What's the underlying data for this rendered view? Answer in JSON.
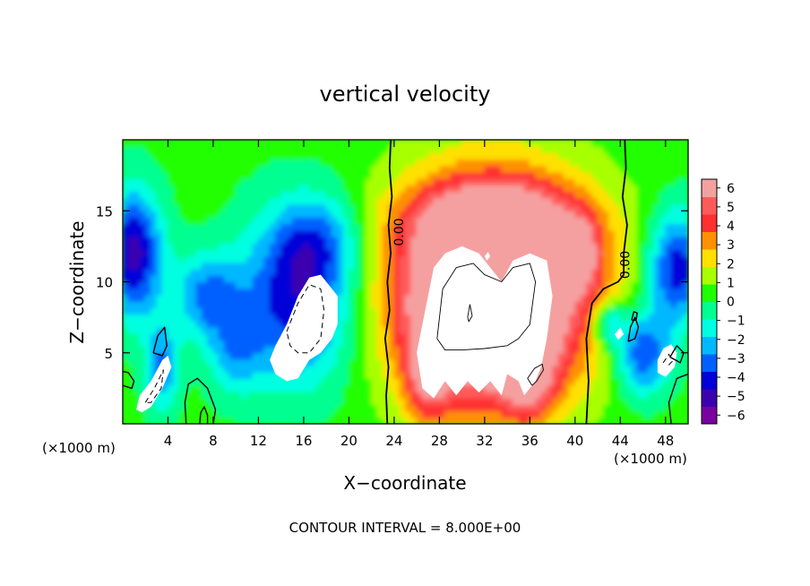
{
  "chart_data": {
    "type": "heatmap",
    "title": "vertical velocity",
    "xlabel": "X−coordinate",
    "ylabel": "Z−coordinate",
    "x_unit_left": "(×1000 m)",
    "x_unit_right": "(×1000 m)",
    "footer": "CONTOUR INTERVAL = 8.000E+00",
    "xlim": [
      0,
      50
    ],
    "ylim": [
      0,
      20
    ],
    "x_ticks": [
      4,
      8,
      12,
      16,
      20,
      24,
      28,
      32,
      36,
      40,
      44,
      48
    ],
    "y_ticks": [
      5,
      10,
      15
    ],
    "colorbar": {
      "ticks": [
        6,
        5,
        4,
        3,
        2,
        1,
        0,
        -1,
        -2,
        -3,
        -4,
        -5,
        -6
      ],
      "tick_labels": [
        "6",
        "5",
        "4",
        "3",
        "2",
        "1",
        "0",
        "−1",
        "−2",
        "−3",
        "−4",
        "−5",
        "−6"
      ],
      "range": [
        -6,
        6
      ],
      "colors": [
        "#7a00a0",
        "#3a00b0",
        "#0000d8",
        "#0060ff",
        "#00b8ff",
        "#00ffe0",
        "#00ff90",
        "#20ff00",
        "#a8ff00",
        "#ffe000",
        "#ff9000",
        "#ff3030",
        "#ff5a5a",
        "#f5a0a0"
      ]
    },
    "contour_labels": [
      {
        "text": "0.00",
        "x": 24.8,
        "y": 13.5
      },
      {
        "text": "0.00",
        "x": 44.8,
        "y": 11.2
      }
    ],
    "field": {
      "background": 0.3,
      "blobs": [
        {
          "x": 33,
          "y": 10,
          "rx": 9,
          "ry": 7.5,
          "w": 7
        },
        {
          "x": 32,
          "y": 8,
          "rx": 7,
          "ry": 7,
          "w": 4
        },
        {
          "x": 33,
          "y": 14.5,
          "rx": 8,
          "ry": 2.5,
          "w": 2.5
        },
        {
          "x": 40.5,
          "y": 12,
          "rx": 1.8,
          "ry": 2.5,
          "w": 3
        },
        {
          "x": 27,
          "y": 3.5,
          "rx": 2,
          "ry": 3.5,
          "w": 3
        },
        {
          "x": 36,
          "y": 3.2,
          "rx": 2.2,
          "ry": 3,
          "w": 3
        },
        {
          "x": 15.5,
          "y": 9,
          "rx": 5,
          "ry": 6,
          "w": -4.5
        },
        {
          "x": 17.5,
          "y": 13,
          "rx": 3.5,
          "ry": 3,
          "w": -2
        },
        {
          "x": 1,
          "y": 12,
          "rx": 2.5,
          "ry": 4.5,
          "w": -5
        },
        {
          "x": 7.5,
          "y": 9,
          "rx": 3,
          "ry": 3,
          "w": -3
        },
        {
          "x": 10,
          "y": 5,
          "rx": 2.5,
          "ry": 3,
          "w": -2
        },
        {
          "x": 3.5,
          "y": 4,
          "rx": 1.5,
          "ry": 3,
          "w": -3
        },
        {
          "x": 49,
          "y": 11,
          "rx": 2.5,
          "ry": 4,
          "w": -4.5
        },
        {
          "x": 46,
          "y": 5,
          "rx": 2.5,
          "ry": 3,
          "w": -4
        },
        {
          "x": 43,
          "y": 7,
          "rx": 1.5,
          "ry": 1.5,
          "w": -3
        }
      ]
    },
    "white_regions_above_6": [
      [
        [
          27,
          9
        ],
        [
          27.5,
          11
        ],
        [
          28.5,
          12
        ],
        [
          30,
          12.5
        ],
        [
          31.5,
          12
        ],
        [
          32.5,
          11
        ],
        [
          33.5,
          10
        ],
        [
          34.5,
          11.5
        ],
        [
          36,
          12
        ],
        [
          37.5,
          11.5
        ],
        [
          38,
          9
        ],
        [
          37.5,
          6
        ],
        [
          37,
          4
        ],
        [
          36.5,
          3
        ],
        [
          35.5,
          2
        ],
        [
          35,
          3
        ],
        [
          34,
          3.5
        ],
        [
          33.5,
          2
        ],
        [
          32.5,
          3
        ],
        [
          31.5,
          2.2
        ],
        [
          30.5,
          3
        ],
        [
          29.5,
          2
        ],
        [
          28.5,
          3
        ],
        [
          27.5,
          1.8
        ],
        [
          26.5,
          2.5
        ],
        [
          26,
          5
        ],
        [
          26.5,
          7
        ]
      ],
      [
        [
          13.5,
          5.5
        ],
        [
          14.5,
          7
        ],
        [
          15.5,
          9
        ],
        [
          16.5,
          10.3
        ],
        [
          17.5,
          10.5
        ],
        [
          18,
          10
        ],
        [
          18.5,
          9.5
        ],
        [
          19,
          9
        ],
        [
          19,
          7
        ],
        [
          18.5,
          6
        ],
        [
          17.5,
          5
        ],
        [
          16.5,
          4.5
        ],
        [
          15.5,
          3.2
        ],
        [
          14.5,
          3
        ],
        [
          13.5,
          3.5
        ],
        [
          13,
          4.5
        ]
      ],
      [
        [
          1.2,
          1
        ],
        [
          1.5,
          2
        ],
        [
          2.5,
          3
        ],
        [
          3.5,
          4.5
        ],
        [
          4,
          4.8
        ],
        [
          4.3,
          4
        ],
        [
          3.5,
          2.5
        ],
        [
          2.5,
          1.2
        ],
        [
          1.7,
          0.8
        ]
      ],
      [
        [
          47.3,
          4.5
        ],
        [
          47.8,
          5.3
        ],
        [
          48.5,
          5.6
        ],
        [
          49,
          5
        ],
        [
          48.8,
          4
        ],
        [
          48,
          3.3
        ],
        [
          47.3,
          3.6
        ]
      ],
      [
        [
          43.5,
          6.3
        ],
        [
          44,
          6.8
        ],
        [
          44.3,
          6.3
        ],
        [
          43.8,
          5.9
        ]
      ],
      [
        [
          32,
          11.8
        ],
        [
          32.3,
          12.1
        ],
        [
          32.5,
          11.8
        ],
        [
          32.2,
          11.5
        ]
      ]
    ],
    "contour_lines": [
      {
        "style": "solid",
        "width": 1.8,
        "points": [
          [
            23.4,
            0
          ],
          [
            23.3,
            2
          ],
          [
            23.5,
            4
          ],
          [
            23.2,
            6
          ],
          [
            23.6,
            8
          ],
          [
            23.4,
            10
          ],
          [
            23.7,
            12
          ],
          [
            23.5,
            14
          ],
          [
            23.8,
            16
          ],
          [
            23.6,
            18
          ],
          [
            23.7,
            20
          ]
        ]
      },
      {
        "style": "solid",
        "width": 1.8,
        "points": [
          [
            41,
            0
          ],
          [
            41.2,
            3
          ],
          [
            41,
            6
          ],
          [
            41.5,
            8.5
          ],
          [
            42.5,
            9.5
          ],
          [
            43.8,
            10
          ],
          [
            44.3,
            10.5
          ],
          [
            44.3,
            12
          ],
          [
            44.6,
            14
          ],
          [
            44.2,
            16
          ],
          [
            44.5,
            18
          ],
          [
            44.4,
            20
          ]
        ]
      },
      {
        "style": "solid",
        "width": 0.9,
        "points": [
          [
            27.8,
            6
          ],
          [
            28.3,
            9.5
          ],
          [
            29.5,
            11
          ],
          [
            31,
            11.3
          ],
          [
            32,
            10.5
          ],
          [
            33.5,
            10
          ],
          [
            34.5,
            11
          ],
          [
            36,
            11.3
          ],
          [
            36.5,
            10
          ],
          [
            36,
            7
          ],
          [
            35,
            6
          ],
          [
            34,
            5.5
          ],
          [
            32,
            5.3
          ],
          [
            30,
            5.2
          ],
          [
            28.5,
            5.2
          ],
          [
            27.8,
            6
          ]
        ]
      },
      {
        "style": "solid",
        "width": 0.9,
        "points": [
          [
            36.2,
            2.7
          ],
          [
            36.6,
            3
          ],
          [
            37.2,
            3.8
          ],
          [
            37.1,
            4.2
          ],
          [
            36.4,
            3.9
          ],
          [
            35.8,
            3.2
          ],
          [
            36.2,
            2.7
          ]
        ]
      },
      {
        "style": "solid",
        "width": 0.9,
        "points": [
          [
            30.5,
            7.5
          ],
          [
            30.7,
            8.4
          ],
          [
            30.9,
            7.6
          ],
          [
            30.6,
            7.2
          ],
          [
            30.5,
            7.5
          ]
        ]
      },
      {
        "style": "dashed",
        "width": 1,
        "points": [
          [
            14.5,
            6.5
          ],
          [
            15.5,
            8.5
          ],
          [
            16.5,
            9.8
          ],
          [
            17.5,
            9.5
          ],
          [
            17.8,
            8
          ],
          [
            17.5,
            6
          ],
          [
            16.5,
            5
          ],
          [
            15.5,
            5
          ],
          [
            14.8,
            5.5
          ],
          [
            14.5,
            6.5
          ]
        ]
      },
      {
        "style": "dashed",
        "width": 1,
        "points": [
          [
            2,
            1.5
          ],
          [
            2.8,
            2.5
          ],
          [
            3.6,
            3.8
          ],
          [
            3.4,
            2.5
          ],
          [
            2.5,
            1.5
          ],
          [
            2,
            1.5
          ]
        ]
      },
      {
        "style": "dashed",
        "width": 1,
        "points": [
          [
            47.8,
            4.3
          ],
          [
            48.3,
            4.9
          ],
          [
            48.6,
            4.4
          ],
          [
            48.1,
            4
          ]
        ]
      },
      {
        "style": "solid",
        "width": 1.4,
        "points": [
          [
            0,
            3.7
          ],
          [
            0.5,
            3.6
          ],
          [
            1,
            3
          ],
          [
            0.8,
            2.5
          ],
          [
            0,
            2.7
          ]
        ]
      },
      {
        "style": "solid",
        "width": 1.4,
        "points": [
          [
            2.7,
            5
          ],
          [
            3.1,
            6.2
          ],
          [
            3.7,
            6.8
          ],
          [
            3.9,
            5.5
          ],
          [
            3.5,
            4.8
          ],
          [
            2.7,
            5
          ]
        ]
      },
      {
        "style": "solid",
        "width": 1.4,
        "points": [
          [
            5.6,
            0
          ],
          [
            5.5,
            1.5
          ],
          [
            5.8,
            2.8
          ],
          [
            6.6,
            3.2
          ],
          [
            7.5,
            2.5
          ],
          [
            8.2,
            1
          ],
          [
            8,
            0
          ]
        ]
      },
      {
        "style": "solid",
        "width": 1.4,
        "points": [
          [
            6.8,
            0
          ],
          [
            6.9,
            0.8
          ],
          [
            7.2,
            1.2
          ],
          [
            7.5,
            0.6
          ],
          [
            7.5,
            0
          ]
        ]
      },
      {
        "style": "solid",
        "width": 1.4,
        "points": [
          [
            44.7,
            5.8
          ],
          [
            44.9,
            6.8
          ],
          [
            45.3,
            7.5
          ],
          [
            45.6,
            6.8
          ],
          [
            45.3,
            6
          ],
          [
            44.7,
            5.8
          ]
        ]
      },
      {
        "style": "solid",
        "width": 1.4,
        "points": [
          [
            45,
            7.3
          ],
          [
            45.2,
            7.9
          ],
          [
            45.5,
            7.8
          ],
          [
            45.4,
            7.3
          ],
          [
            45,
            7.3
          ]
        ]
      },
      {
        "style": "solid",
        "width": 1.4,
        "points": [
          [
            48.4,
            4.7
          ],
          [
            49,
            5.5
          ],
          [
            49.6,
            5
          ],
          [
            49.3,
            4.3
          ],
          [
            48.4,
            4.7
          ]
        ]
      },
      {
        "style": "solid",
        "width": 1.4,
        "points": [
          [
            48.5,
            0
          ],
          [
            48.3,
            1.5
          ],
          [
            49,
            3.2
          ],
          [
            50,
            3.5
          ]
        ]
      }
    ]
  }
}
